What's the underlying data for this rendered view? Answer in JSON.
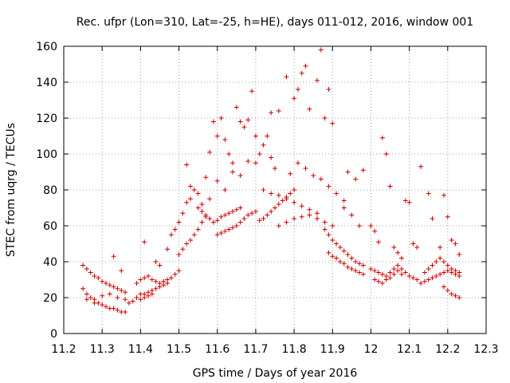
{
  "chart_data": {
    "type": "scatter",
    "title": "Rec. ufpr (Lon=310, Lat=-25, h=HE), days 011-012, 2016, window 001",
    "xlabel": "GPS time / Days of year 2016",
    "ylabel": "STEC from uqrg / TECUs",
    "xlim": [
      11.2,
      12.3
    ],
    "ylim": [
      0,
      160
    ],
    "xticks": [
      "11.2",
      "11.3",
      "11.4",
      "11.5",
      "11.6",
      "11.7",
      "11.8",
      "11.9",
      "12",
      "12.1",
      "12.2",
      "12.3"
    ],
    "yticks": [
      "0",
      "20",
      "40",
      "60",
      "80",
      "100",
      "120",
      "140",
      "160"
    ],
    "grid": true,
    "marker": "+",
    "color": "#cc0000",
    "series": [
      {
        "name": "STEC",
        "points": [
          [
            11.25,
            25
          ],
          [
            11.26,
            22
          ],
          [
            11.27,
            20
          ],
          [
            11.28,
            19
          ],
          [
            11.29,
            17
          ],
          [
            11.3,
            16
          ],
          [
            11.31,
            15
          ],
          [
            11.32,
            14
          ],
          [
            11.33,
            14
          ],
          [
            11.34,
            13
          ],
          [
            11.35,
            12
          ],
          [
            11.36,
            12
          ],
          [
            11.25,
            38
          ],
          [
            11.26,
            36
          ],
          [
            11.27,
            34
          ],
          [
            11.28,
            32
          ],
          [
            11.29,
            31
          ],
          [
            11.3,
            29
          ],
          [
            11.31,
            28
          ],
          [
            11.32,
            27
          ],
          [
            11.33,
            26
          ],
          [
            11.34,
            25
          ],
          [
            11.35,
            24
          ],
          [
            11.36,
            23
          ],
          [
            11.26,
            19
          ],
          [
            11.28,
            17
          ],
          [
            11.3,
            21
          ],
          [
            11.32,
            22
          ],
          [
            11.34,
            20
          ],
          [
            11.36,
            19
          ],
          [
            11.37,
            17
          ],
          [
            11.38,
            18
          ],
          [
            11.33,
            43
          ],
          [
            11.35,
            35
          ],
          [
            11.39,
            28
          ],
          [
            11.4,
            30
          ],
          [
            11.41,
            31
          ],
          [
            11.42,
            32
          ],
          [
            11.43,
            30
          ],
          [
            11.44,
            29
          ],
          [
            11.45,
            28
          ],
          [
            11.46,
            29
          ],
          [
            11.47,
            30
          ],
          [
            11.48,
            31
          ],
          [
            11.49,
            33
          ],
          [
            11.5,
            35
          ],
          [
            11.4,
            22
          ],
          [
            11.41,
            22
          ],
          [
            11.42,
            23
          ],
          [
            11.43,
            24
          ],
          [
            11.44,
            25
          ],
          [
            11.45,
            26
          ],
          [
            11.46,
            27
          ],
          [
            11.47,
            28
          ],
          [
            11.39,
            20
          ],
          [
            11.4,
            19
          ],
          [
            11.41,
            20
          ],
          [
            11.42,
            21
          ],
          [
            11.43,
            22
          ],
          [
            11.41,
            51
          ],
          [
            11.44,
            40
          ],
          [
            11.45,
            38
          ],
          [
            11.47,
            47
          ],
          [
            11.48,
            55
          ],
          [
            11.49,
            58
          ],
          [
            11.5,
            62
          ],
          [
            11.51,
            67
          ],
          [
            11.52,
            73
          ],
          [
            11.53,
            75
          ],
          [
            11.54,
            80
          ],
          [
            11.5,
            44
          ],
          [
            11.51,
            47
          ],
          [
            11.52,
            50
          ],
          [
            11.53,
            52
          ],
          [
            11.54,
            55
          ],
          [
            11.55,
            58
          ],
          [
            11.56,
            62
          ],
          [
            11.57,
            65
          ],
          [
            11.52,
            94
          ],
          [
            11.53,
            82
          ],
          [
            11.55,
            78
          ],
          [
            11.56,
            72
          ],
          [
            11.57,
            87
          ],
          [
            11.58,
            101
          ],
          [
            11.59,
            118
          ],
          [
            11.6,
            110
          ],
          [
            11.61,
            120
          ],
          [
            11.62,
            108
          ],
          [
            11.63,
            100
          ],
          [
            11.64,
            95
          ],
          [
            11.65,
            126
          ],
          [
            11.66,
            118
          ],
          [
            11.67,
            115
          ],
          [
            11.68,
            119
          ],
          [
            11.69,
            135
          ],
          [
            11.7,
            110
          ],
          [
            11.55,
            70
          ],
          [
            11.56,
            68
          ],
          [
            11.57,
            66
          ],
          [
            11.58,
            64
          ],
          [
            11.59,
            62
          ],
          [
            11.6,
            63
          ],
          [
            11.61,
            65
          ],
          [
            11.62,
            66
          ],
          [
            11.63,
            67
          ],
          [
            11.64,
            68
          ],
          [
            11.65,
            69
          ],
          [
            11.66,
            70
          ],
          [
            11.58,
            75
          ],
          [
            11.6,
            55
          ],
          [
            11.61,
            56
          ],
          [
            11.62,
            57
          ],
          [
            11.63,
            58
          ],
          [
            11.64,
            59
          ],
          [
            11.65,
            60
          ],
          [
            11.66,
            62
          ],
          [
            11.67,
            64
          ],
          [
            11.68,
            66
          ],
          [
            11.69,
            67
          ],
          [
            11.7,
            68
          ],
          [
            11.6,
            85
          ],
          [
            11.62,
            80
          ],
          [
            11.64,
            90
          ],
          [
            11.66,
            88
          ],
          [
            11.68,
            96
          ],
          [
            11.7,
            95
          ],
          [
            11.71,
            100
          ],
          [
            11.72,
            105
          ],
          [
            11.73,
            110
          ],
          [
            11.74,
            98
          ],
          [
            11.75,
            92
          ],
          [
            11.71,
            63
          ],
          [
            11.72,
            64
          ],
          [
            11.73,
            66
          ],
          [
            11.74,
            68
          ],
          [
            11.75,
            70
          ],
          [
            11.76,
            72
          ],
          [
            11.77,
            74
          ],
          [
            11.78,
            76
          ],
          [
            11.79,
            78
          ],
          [
            11.8,
            80
          ],
          [
            11.72,
            80
          ],
          [
            11.74,
            78
          ],
          [
            11.76,
            77
          ],
          [
            11.78,
            75
          ],
          [
            11.8,
            73
          ],
          [
            11.82,
            71
          ],
          [
            11.84,
            69
          ],
          [
            11.86,
            67
          ],
          [
            11.74,
            123
          ],
          [
            11.76,
            124
          ],
          [
            11.78,
            143
          ],
          [
            11.8,
            131
          ],
          [
            11.81,
            136
          ],
          [
            11.82,
            145
          ],
          [
            11.83,
            149
          ],
          [
            11.84,
            125
          ],
          [
            11.86,
            141
          ],
          [
            11.87,
            158
          ],
          [
            11.88,
            120
          ],
          [
            11.89,
            136
          ],
          [
            11.9,
            117
          ],
          [
            11.76,
            60
          ],
          [
            11.78,
            62
          ],
          [
            11.8,
            64
          ],
          [
            11.82,
            65
          ],
          [
            11.84,
            66
          ],
          [
            11.86,
            64
          ],
          [
            11.88,
            62
          ],
          [
            11.9,
            60
          ],
          [
            11.79,
            89
          ],
          [
            11.81,
            95
          ],
          [
            11.83,
            92
          ],
          [
            11.85,
            88
          ],
          [
            11.87,
            86
          ],
          [
            11.89,
            82
          ],
          [
            11.91,
            78
          ],
          [
            11.93,
            74
          ],
          [
            11.88,
            58
          ],
          [
            11.89,
            55
          ],
          [
            11.9,
            52
          ],
          [
            11.91,
            50
          ],
          [
            11.92,
            48
          ],
          [
            11.93,
            46
          ],
          [
            11.94,
            44
          ],
          [
            11.95,
            42
          ],
          [
            11.96,
            40
          ],
          [
            11.97,
            39
          ],
          [
            11.98,
            38
          ],
          [
            11.89,
            45
          ],
          [
            11.9,
            43
          ],
          [
            11.91,
            42
          ],
          [
            11.92,
            40
          ],
          [
            11.93,
            39
          ],
          [
            11.94,
            37
          ],
          [
            11.95,
            36
          ],
          [
            11.96,
            35
          ],
          [
            11.97,
            34
          ],
          [
            11.98,
            33
          ],
          [
            11.94,
            90
          ],
          [
            11.96,
            86
          ],
          [
            11.98,
            91
          ],
          [
            11.93,
            70
          ],
          [
            11.95,
            66
          ],
          [
            11.97,
            60
          ],
          [
            12.0,
            60
          ],
          [
            12.01,
            57
          ],
          [
            12.02,
            51
          ],
          [
            12.03,
            109
          ],
          [
            12.04,
            100
          ],
          [
            12.05,
            82
          ],
          [
            12.06,
            48
          ],
          [
            12.07,
            45
          ],
          [
            12.08,
            42
          ],
          [
            12.09,
            74
          ],
          [
            12.1,
            73
          ],
          [
            12.11,
            50
          ],
          [
            12.12,
            48
          ],
          [
            12.0,
            36
          ],
          [
            12.01,
            35
          ],
          [
            12.02,
            34
          ],
          [
            12.03,
            33
          ],
          [
            12.04,
            32
          ],
          [
            12.05,
            34
          ],
          [
            12.06,
            36
          ],
          [
            12.07,
            38
          ],
          [
            12.08,
            36
          ],
          [
            12.09,
            34
          ],
          [
            12.1,
            32
          ],
          [
            12.11,
            31
          ],
          [
            12.12,
            30
          ],
          [
            12.01,
            30
          ],
          [
            12.02,
            29
          ],
          [
            12.03,
            28
          ],
          [
            12.04,
            30
          ],
          [
            12.05,
            31
          ],
          [
            12.06,
            33
          ],
          [
            12.07,
            35
          ],
          [
            12.08,
            33
          ],
          [
            12.13,
            93
          ],
          [
            12.15,
            78
          ],
          [
            12.16,
            64
          ],
          [
            12.18,
            48
          ],
          [
            12.19,
            77
          ],
          [
            12.2,
            65
          ],
          [
            12.21,
            52
          ],
          [
            12.22,
            50
          ],
          [
            12.23,
            44
          ],
          [
            12.13,
            28
          ],
          [
            12.14,
            29
          ],
          [
            12.15,
            30
          ],
          [
            12.16,
            31
          ],
          [
            12.17,
            32
          ],
          [
            12.18,
            33
          ],
          [
            12.19,
            34
          ],
          [
            12.2,
            35
          ],
          [
            12.21,
            34
          ],
          [
            12.22,
            33
          ],
          [
            12.23,
            32
          ],
          [
            12.14,
            34
          ],
          [
            12.15,
            36
          ],
          [
            12.16,
            38
          ],
          [
            12.17,
            40
          ],
          [
            12.18,
            42
          ],
          [
            12.19,
            40
          ],
          [
            12.2,
            38
          ],
          [
            12.21,
            36
          ],
          [
            12.22,
            35
          ],
          [
            12.23,
            34
          ],
          [
            12.19,
            26
          ],
          [
            12.2,
            24
          ],
          [
            12.21,
            22
          ],
          [
            12.22,
            21
          ],
          [
            12.23,
            20
          ]
        ]
      }
    ]
  }
}
